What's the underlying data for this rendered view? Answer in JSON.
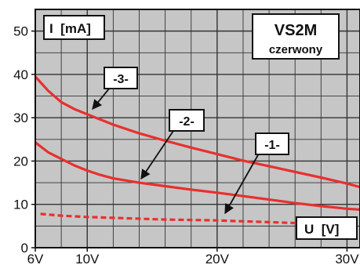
{
  "chart_data": {
    "type": "line",
    "title": "VS2M",
    "subtitle": "czerwony",
    "ylabel": "I  [mA]",
    "xlabel": "U  [V]",
    "xlim": [
      6,
      31
    ],
    "ylim": [
      0,
      55
    ],
    "grid": true,
    "x_ticks": [
      {
        "value": 6,
        "label": "6V"
      },
      {
        "value": 10,
        "label": "10V"
      },
      {
        "value": 20,
        "label": "20V"
      },
      {
        "value": 30,
        "label": "30V"
      }
    ],
    "y_ticks": [
      {
        "value": 0,
        "label": "0"
      },
      {
        "value": 10,
        "label": "10"
      },
      {
        "value": 20,
        "label": "20"
      },
      {
        "value": 30,
        "label": "30"
      },
      {
        "value": 40,
        "label": "40"
      },
      {
        "value": 50,
        "label": "50"
      }
    ],
    "series": [
      {
        "name": "-3-",
        "style": "solid",
        "color": "#e8302f",
        "x": [
          6,
          7,
          8,
          9,
          10,
          12,
          14,
          16,
          18,
          20,
          22,
          24,
          26,
          28,
          30,
          31
        ],
        "y": [
          39.5,
          36.2,
          33.6,
          32,
          30.8,
          28.4,
          26.4,
          24.7,
          23.1,
          21.6,
          20.1,
          18.8,
          17.5,
          16.2,
          14.8,
          14
        ]
      },
      {
        "name": "-2-",
        "style": "solid",
        "color": "#e8302f",
        "x": [
          6,
          7,
          8,
          9,
          10,
          11,
          12,
          14,
          16,
          18,
          20,
          22,
          24,
          26,
          28,
          30,
          31
        ],
        "y": [
          24.3,
          22,
          20.5,
          19,
          17.8,
          16.8,
          16,
          15,
          14.2,
          13.4,
          12.7,
          11.9,
          11.1,
          10.3,
          9.6,
          9,
          8.8
        ]
      },
      {
        "name": "-1-",
        "style": "dashed",
        "color": "#e8302f",
        "x": [
          6.4,
          8,
          10,
          12,
          14,
          16,
          18,
          20,
          22,
          24,
          26,
          28,
          30,
          31
        ],
        "y": [
          7.8,
          7.4,
          7.1,
          6.9,
          6.7,
          6.5,
          6.4,
          6.3,
          6.1,
          5.9,
          5.7,
          5.6,
          5.5,
          5.5
        ]
      }
    ]
  },
  "colors": {
    "curve": "#e8302f",
    "grid": "#333333",
    "frame": "#111111",
    "background": "#c6c6c6"
  }
}
